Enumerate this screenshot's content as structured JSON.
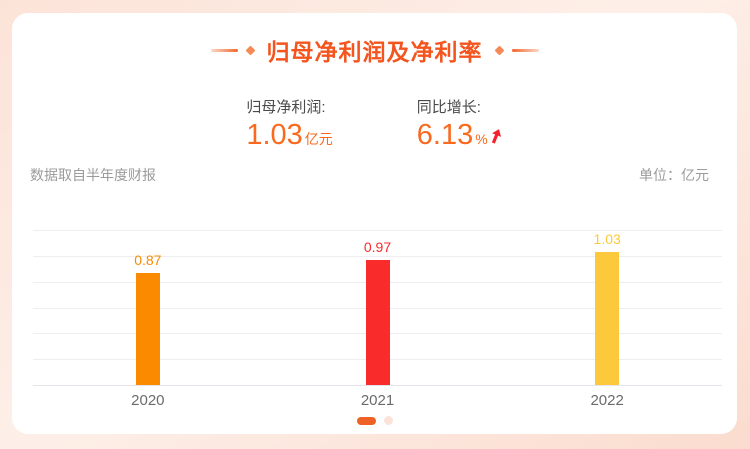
{
  "header": {
    "title": "归母净利润及净利率"
  },
  "stats": {
    "profit": {
      "label": "归母净利润:",
      "value": "1.03",
      "unit": "亿元"
    },
    "growth": {
      "label": "同比增长:",
      "value": "6.13",
      "unit": "%",
      "trend": "up"
    }
  },
  "meta": {
    "source_note": "数据取自半年度财报",
    "unit_note": "单位：亿元"
  },
  "chart_data": {
    "type": "bar",
    "title": "归母净利润及净利率",
    "categories": [
      "2020",
      "2021",
      "2022"
    ],
    "values": [
      0.87,
      0.97,
      1.03
    ],
    "value_labels": [
      "0.87",
      "0.97",
      "1.03"
    ],
    "bar_colors": [
      "#FC8A00",
      "#F92B2B",
      "#FCC93C"
    ],
    "ylabel": "亿元",
    "ylim": [
      0,
      1.2
    ],
    "gridline_count": 7,
    "grid": true,
    "legend": false
  },
  "pagination": {
    "dot_count": 2,
    "active_index": 0
  },
  "colors": {
    "accent_title": "#F4551E",
    "value_orange": "#F96A1E",
    "arrow_red": "#F5222D",
    "label_dark": "#4A4A4A",
    "meta_gray": "#9B9B9B",
    "gridline": "#EDEDF2",
    "background_pink": "#FCE3D8",
    "card_white": "#FFFFFF"
  }
}
